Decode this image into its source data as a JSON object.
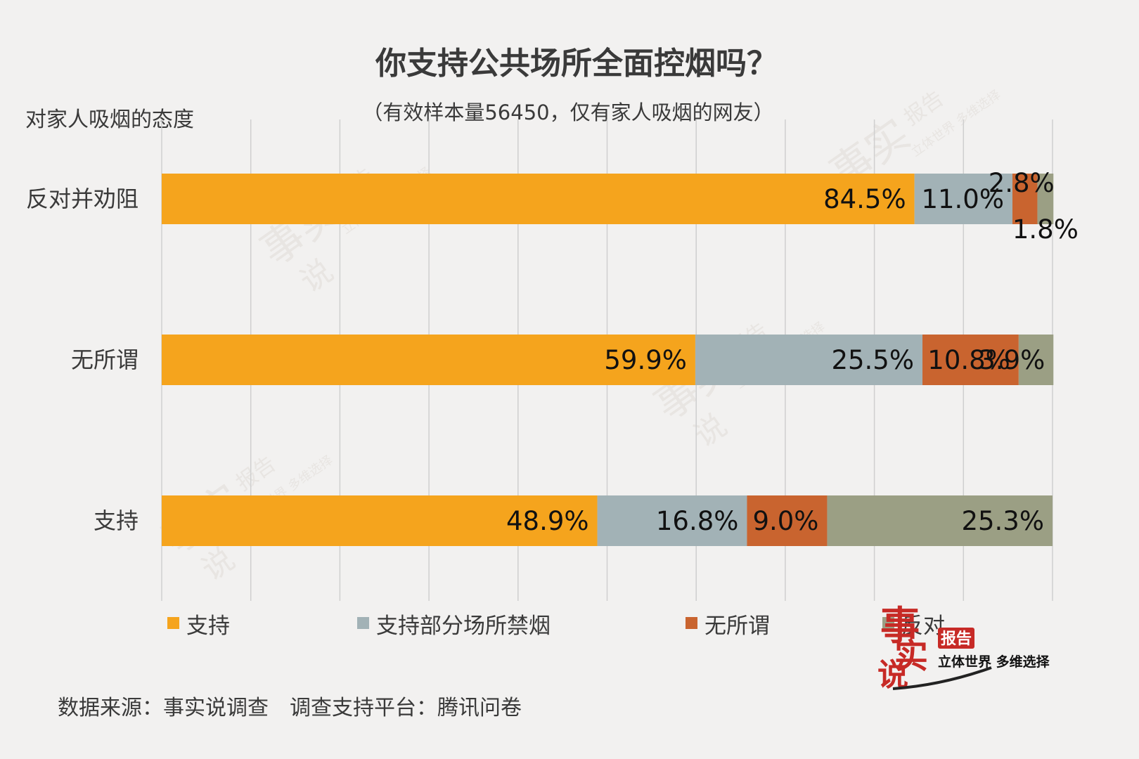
{
  "header": {
    "title": "你支持公共场所全面控烟吗？",
    "subtitle": "（有效样本量56450，仅有家人吸烟的网友）",
    "y_axis_title": "对家人吸烟的态度"
  },
  "footer": {
    "source": "数据来源：事实说调查　调查支持平台：腾讯问卷"
  },
  "logo": {
    "char_top": "事",
    "char_mid": "实",
    "char_bottom": "说",
    "badge": "报告",
    "slogan": "立体世界 多维选择"
  },
  "colors": {
    "support": "#f5a41d",
    "partial": "#a2b2b6",
    "indifferent": "#c9642f",
    "oppose": "#9b9f84",
    "logo_red": "#c72a26"
  },
  "chart_data": {
    "type": "bar",
    "orientation": "horizontal",
    "stacked": true,
    "normalized_to": 100,
    "categories": [
      "反对并劝阻",
      "无所谓",
      "支持"
    ],
    "series": [
      {
        "name": "支持",
        "color_key": "support",
        "values": [
          84.5,
          59.9,
          48.9
        ],
        "labels": [
          "84.5%",
          "59.9%",
          "48.9%"
        ]
      },
      {
        "name": "支持部分场所禁烟",
        "color_key": "partial",
        "values": [
          11.0,
          25.5,
          16.8
        ],
        "labels": [
          "11.0%",
          "25.5%",
          "16.8%"
        ]
      },
      {
        "name": "无所谓",
        "color_key": "indifferent",
        "values": [
          2.8,
          10.8,
          9.0
        ],
        "labels": [
          "2.8%",
          "10.8%",
          "9.0%"
        ]
      },
      {
        "name": "反对",
        "color_key": "oppose",
        "values": [
          1.8,
          3.9,
          25.3
        ],
        "labels": [
          "1.8%",
          "3.9%",
          "25.3%"
        ]
      }
    ],
    "xlim": [
      0,
      100
    ],
    "grid": true,
    "legend_position": "bottom"
  }
}
